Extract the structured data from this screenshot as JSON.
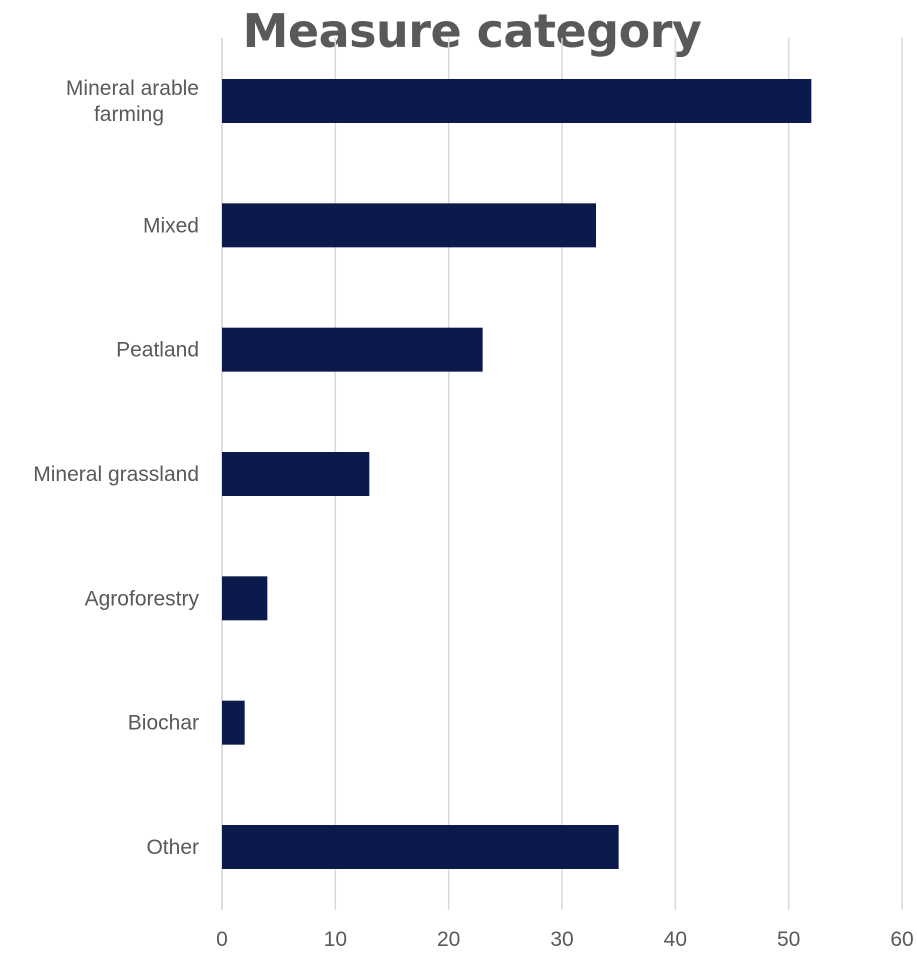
{
  "chart_data": {
    "type": "bar",
    "orientation": "horizontal",
    "title": "Measure category",
    "xlabel": "",
    "ylabel": "",
    "categories": [
      [
        "Mineral arable",
        "farming"
      ],
      [
        "Mixed"
      ],
      [
        "Peatland"
      ],
      [
        "Mineral grassland"
      ],
      [
        "Agroforestry"
      ],
      [
        "Biochar"
      ],
      [
        "Other"
      ]
    ],
    "values": [
      52,
      33,
      23,
      13,
      4,
      2,
      35
    ],
    "xlim": [
      0,
      60
    ],
    "xticks": [
      "0",
      "10",
      "20",
      "30",
      "40",
      "50",
      "60"
    ],
    "grid": true,
    "legend": "none",
    "colors": {
      "bar": "#0c1a4b",
      "grid": "#d9d9d9",
      "text": "#595959",
      "title": "#595959"
    }
  }
}
